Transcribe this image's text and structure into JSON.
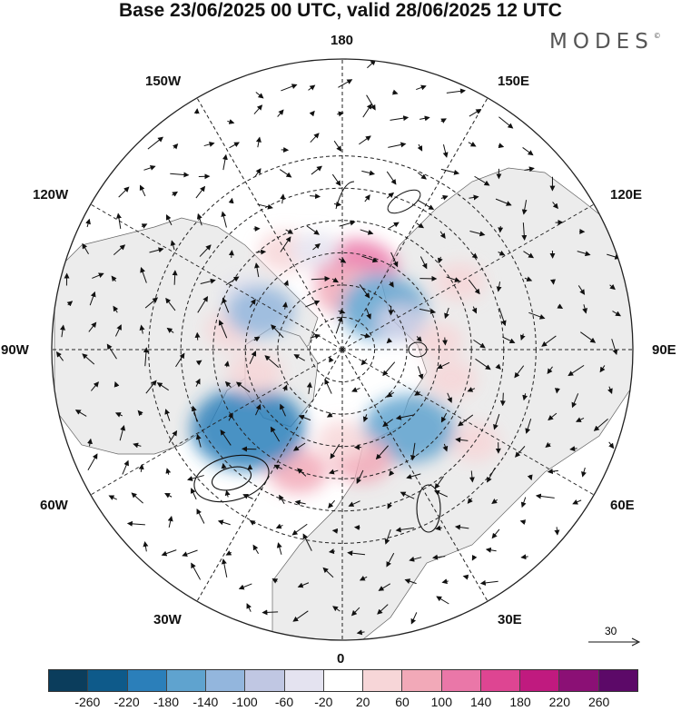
{
  "title": "Base 23/06/2025 00 UTC, valid 28/06/2025 12 UTC",
  "logo": "MODES",
  "logo_mark": "©",
  "longitude_labels": [
    "180",
    "150E",
    "120E",
    "90E",
    "60E",
    "30E",
    "0",
    "30W",
    "60W",
    "90W",
    "120W",
    "150W"
  ],
  "vector_reference": "30",
  "colorbar": {
    "colors": [
      "#0b3d5c",
      "#0e5a8a",
      "#2b7fba",
      "#5fa3cf",
      "#93b6dd",
      "#c0c7e3",
      "#e4e3f0",
      "#ffffff",
      "#f7d6d8",
      "#f2a9b8",
      "#ea77a8",
      "#de4592",
      "#c01a7f",
      "#8b1075",
      "#5c0968"
    ],
    "ticks": [
      "-260",
      "-220",
      "-180",
      "-140",
      "-100",
      "-60",
      "-20",
      "20",
      "60",
      "100",
      "140",
      "180",
      "220",
      "260"
    ]
  },
  "anomaly_regions": [
    {
      "lon": 170,
      "lat": 65,
      "value": 110,
      "color": "#ea77a8"
    },
    {
      "lon": 175,
      "lat": 72,
      "value": 70,
      "color": "#f2a9b8"
    },
    {
      "lon": 145,
      "lat": 70,
      "value": -70,
      "color": "#93b6dd"
    },
    {
      "lon": 135,
      "lat": 72,
      "value": -120,
      "color": "#5fa3cf"
    },
    {
      "lon": 210,
      "lat": 55,
      "value": 50,
      "color": "#f7d6d8"
    },
    {
      "lon": 240,
      "lat": 55,
      "value": -30,
      "color": "#e4e3f0"
    },
    {
      "lon": 115,
      "lat": 70,
      "value": -40,
      "color": "#c0c7e3"
    },
    {
      "lon": 120,
      "lat": 48,
      "value": 40,
      "color": "#f7d6d8"
    },
    {
      "lon": 95,
      "lat": 60,
      "value": 35,
      "color": "#f7d6d8"
    },
    {
      "lon": 75,
      "lat": 55,
      "value": 40,
      "color": "#f7d6d8"
    },
    {
      "lon": 55,
      "lat": 40,
      "value": 40,
      "color": "#f7d6d8"
    },
    {
      "lon": 35,
      "lat": 55,
      "value": -60,
      "color": "#c0c7e3"
    },
    {
      "lon": 40,
      "lat": 58,
      "value": -130,
      "color": "#5fa3cf"
    },
    {
      "lon": 10,
      "lat": 55,
      "value": 60,
      "color": "#f2a9b8"
    },
    {
      "lon": 0,
      "lat": 62,
      "value": 40,
      "color": "#f7d6d8"
    },
    {
      "lon": -20,
      "lat": 50,
      "value": 60,
      "color": "#f2a9b8"
    },
    {
      "lon": -50,
      "lat": 52,
      "value": -100,
      "color": "#93b6dd"
    },
    {
      "lon": -50,
      "lat": 52,
      "value": -180,
      "color": "#2b7fba"
    },
    {
      "lon": -75,
      "lat": 62,
      "value": 50,
      "color": "#f7d6d8"
    },
    {
      "lon": -100,
      "lat": 55,
      "value": 40,
      "color": "#f7d6d8"
    },
    {
      "lon": -115,
      "lat": 62,
      "value": -80,
      "color": "#93b6dd"
    },
    {
      "lon": -150,
      "lat": 55,
      "value": 40,
      "color": "#f7d6d8"
    },
    {
      "lon": -165,
      "lat": 58,
      "value": -30,
      "color": "#e4e3f0"
    }
  ]
}
